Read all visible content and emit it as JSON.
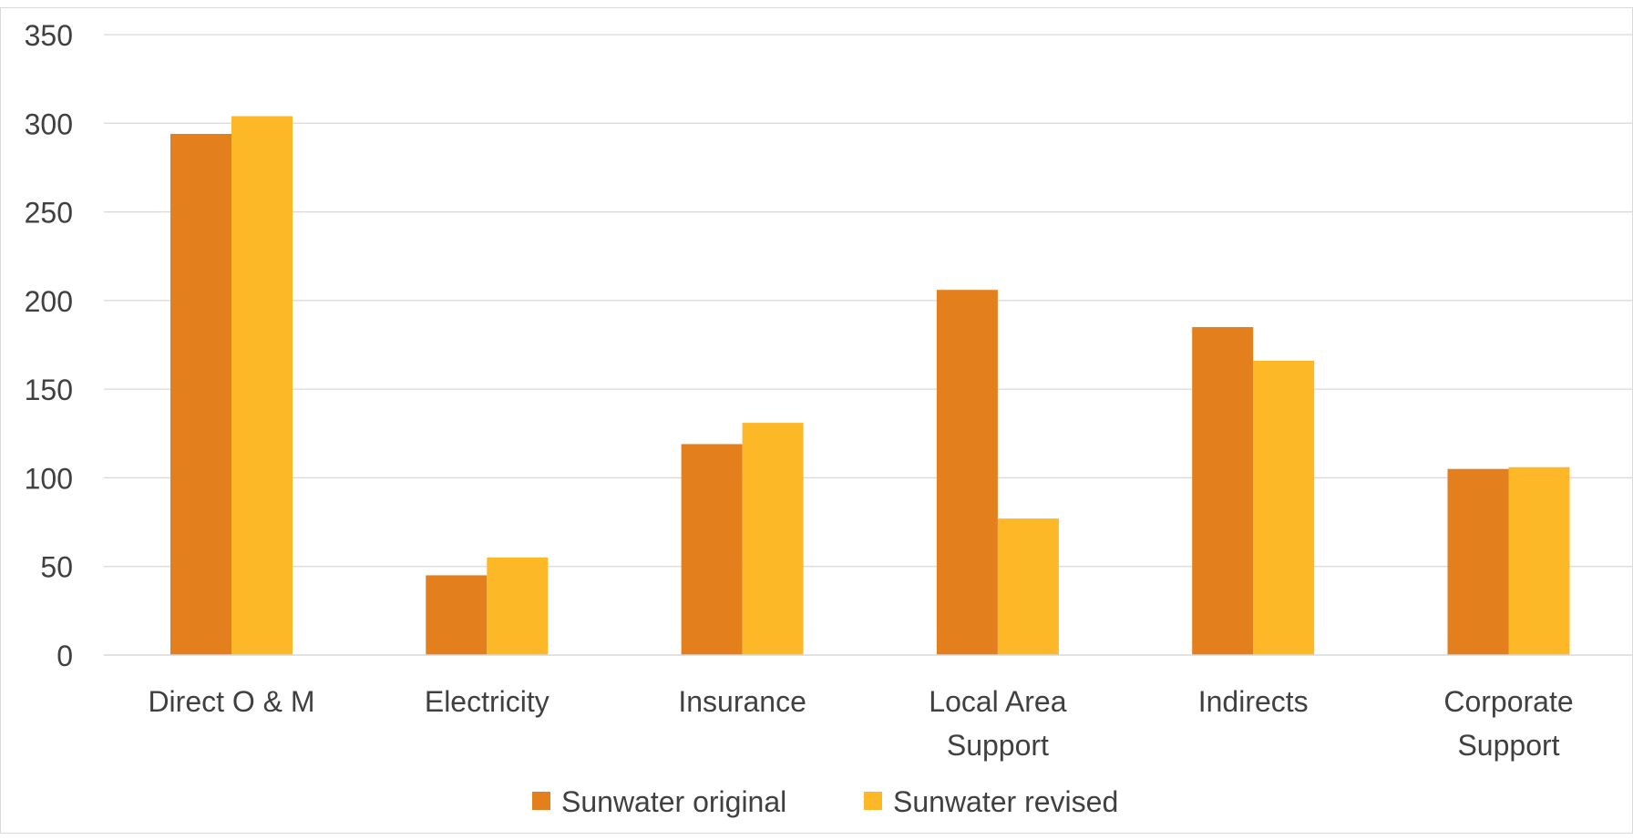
{
  "chart_data": {
    "type": "bar",
    "title": "",
    "xlabel": "",
    "ylabel": "",
    "categories": [
      [
        "Direct O & M"
      ],
      [
        "Electricity"
      ],
      [
        "Insurance"
      ],
      [
        "Local Area",
        "Support"
      ],
      [
        "Indirects"
      ],
      [
        "Corporate",
        "Support"
      ]
    ],
    "series": [
      {
        "name": "Sunwater original",
        "color": "#E47F1E",
        "values": [
          294,
          45,
          119,
          206,
          185,
          105
        ]
      },
      {
        "name": "Sunwater revised",
        "color": "#FCB827",
        "values": [
          304,
          55,
          131,
          77,
          166,
          106
        ]
      }
    ],
    "ylim": [
      0,
      350
    ],
    "yticks": [
      0,
      50,
      100,
      150,
      200,
      250,
      300,
      350
    ],
    "grid": true,
    "legend": "bottom-center"
  }
}
